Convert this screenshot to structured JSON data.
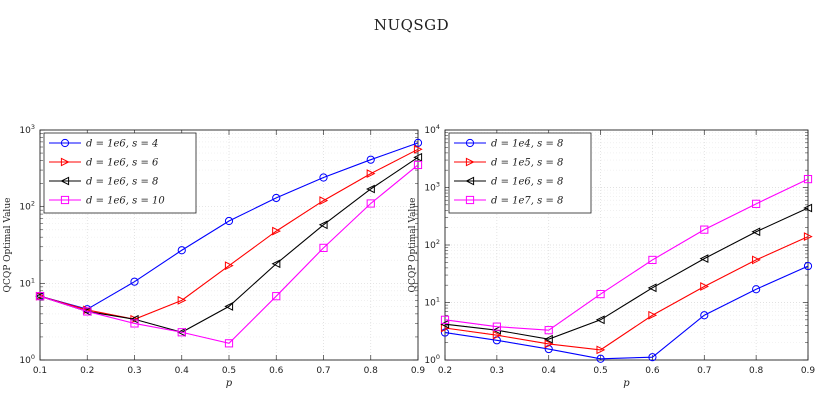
{
  "figure": {
    "title": "NUQSGD"
  },
  "colors": {
    "blue": "#0000ff",
    "red": "#ff0000",
    "black": "#000000",
    "magenta": "#ff00ff"
  },
  "chart_data": [
    {
      "type": "line",
      "yscale": "log",
      "xlabel": "p",
      "ylabel": "QCQP Optimal Value",
      "xlim": [
        0.1,
        0.9
      ],
      "ylim": [
        1,
        1000
      ],
      "xticks": [
        "0.1",
        "0.2",
        "0.3",
        "0.4",
        "0.5",
        "0.6",
        "0.7",
        "0.8",
        "0.9"
      ],
      "grid": true,
      "legend_position": "top-left",
      "series": [
        {
          "name": "d = 1e6, s = 4",
          "color": "#0000ff",
          "marker": "circle",
          "x": [
            0.1,
            0.2,
            0.3,
            0.4,
            0.5,
            0.6,
            0.7,
            0.8,
            0.9
          ],
          "y": [
            6.8,
            4.6,
            10.5,
            27,
            65,
            130,
            240,
            410,
            680
          ]
        },
        {
          "name": "d = 1e6, s = 6",
          "color": "#ff0000",
          "marker": "triangle-right",
          "x": [
            0.1,
            0.2,
            0.3,
            0.4,
            0.5,
            0.6,
            0.7,
            0.8,
            0.9
          ],
          "y": [
            6.8,
            4.5,
            3.4,
            6.0,
            17,
            48,
            120,
            270,
            560
          ]
        },
        {
          "name": "d = 1e6, s = 8",
          "color": "#000000",
          "marker": "triangle-left",
          "x": [
            0.1,
            0.2,
            0.3,
            0.4,
            0.5,
            0.6,
            0.7,
            0.8,
            0.9
          ],
          "y": [
            6.8,
            4.3,
            3.4,
            2.3,
            5.0,
            18,
            58,
            170,
            440
          ]
        },
        {
          "name": "d = 1e6, s = 10",
          "color": "#ff00ff",
          "marker": "square",
          "x": [
            0.1,
            0.2,
            0.3,
            0.4,
            0.5,
            0.6,
            0.7,
            0.8,
            0.9
          ],
          "y": [
            6.8,
            4.3,
            3.0,
            2.3,
            1.65,
            6.8,
            29,
            110,
            350
          ]
        }
      ]
    },
    {
      "type": "line",
      "yscale": "log",
      "xlabel": "p",
      "ylabel": "QCQP Optimal Value",
      "xlim": [
        0.2,
        0.9
      ],
      "ylim": [
        1,
        10000
      ],
      "xticks": [
        "0.2",
        "0.3",
        "0.4",
        "0.5",
        "0.6",
        "0.7",
        "0.8",
        "0.9"
      ],
      "grid": true,
      "legend_position": "top-left",
      "series": [
        {
          "name": "d = 1e4, s = 8",
          "color": "#0000ff",
          "marker": "circle",
          "x": [
            0.2,
            0.3,
            0.4,
            0.5,
            0.6,
            0.7,
            0.8,
            0.9
          ],
          "y": [
            3.0,
            2.2,
            1.55,
            1.05,
            1.12,
            6.0,
            17,
            43
          ]
        },
        {
          "name": "d = 1e5, s = 8",
          "color": "#ff0000",
          "marker": "triangle-right",
          "x": [
            0.2,
            0.3,
            0.4,
            0.5,
            0.6,
            0.7,
            0.8,
            0.9
          ],
          "y": [
            3.6,
            2.7,
            1.9,
            1.5,
            6.0,
            19,
            55,
            140
          ]
        },
        {
          "name": "d = 1e6, s = 8",
          "color": "#000000",
          "marker": "triangle-left",
          "x": [
            0.2,
            0.3,
            0.4,
            0.5,
            0.6,
            0.7,
            0.8,
            0.9
          ],
          "y": [
            4.2,
            3.3,
            2.3,
            5.0,
            18,
            58,
            170,
            440
          ]
        },
        {
          "name": "d = 1e7, s = 8",
          "color": "#ff00ff",
          "marker": "square",
          "x": [
            0.2,
            0.3,
            0.4,
            0.5,
            0.6,
            0.7,
            0.8,
            0.9
          ],
          "y": [
            5.0,
            3.8,
            3.3,
            14,
            55,
            185,
            520,
            1400
          ]
        }
      ]
    }
  ]
}
